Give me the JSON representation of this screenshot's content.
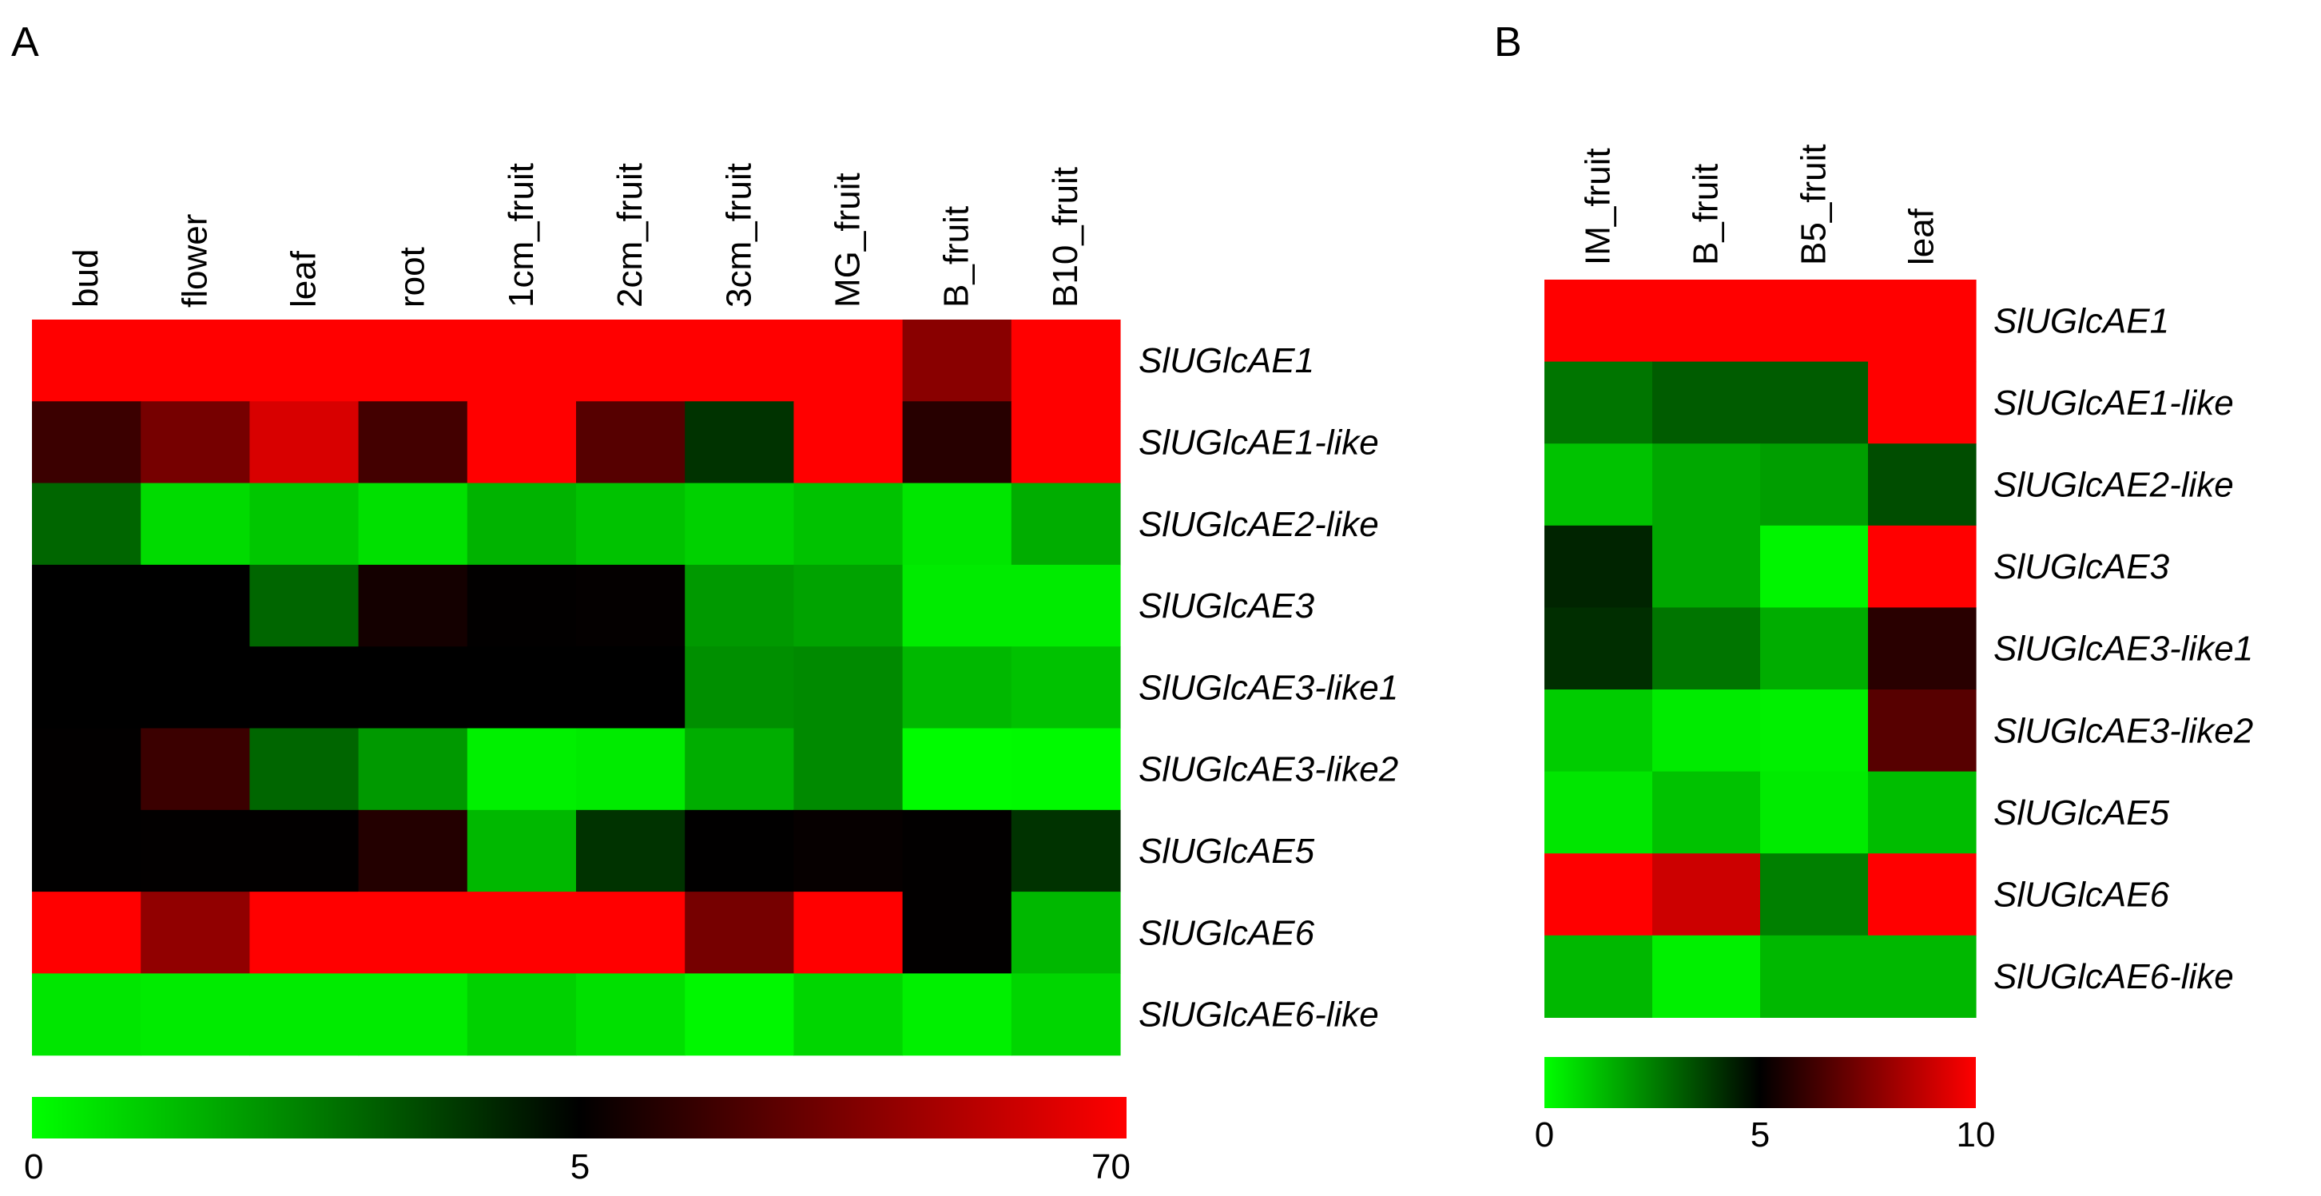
{
  "chart_data": [
    {
      "type": "heatmap",
      "panel_label": "A",
      "columns": [
        "bud",
        "flower",
        "leaf",
        "root",
        "1cm_fruit",
        "2cm_fruit",
        "3cm_fruit",
        "MG_fruit",
        "B_fruit",
        "B10_fruit"
      ],
      "rows": [
        "SlUGlcAE1",
        "SlUGlcAE1-like",
        "SlUGlcAE2-like",
        "SlUGlcAE3",
        "SlUGlcAE3-like1",
        "SlUGlcAE3-like2",
        "SlUGlcAE5",
        "SlUGlcAE6",
        "SlUGlcAE6-like"
      ],
      "values": [
        [
          70,
          70,
          70,
          70,
          70,
          70,
          70,
          70,
          40,
          70
        ],
        [
          20,
          35,
          60,
          22,
          70,
          27,
          4,
          70,
          15,
          70
        ],
        [
          3,
          0.7,
          1.1,
          0.6,
          1.5,
          1.2,
          0.9,
          1.2,
          0.5,
          1.6
        ],
        [
          5,
          5,
          3,
          10,
          5.5,
          6,
          2,
          1.8,
          0.4,
          0.4
        ],
        [
          5,
          5,
          5,
          5,
          5,
          5,
          2.2,
          2.3,
          1.4,
          1.2
        ],
        [
          5.5,
          20,
          3,
          2,
          0.3,
          0.4,
          1.6,
          2.3,
          0.05,
          0.1
        ],
        [
          5.2,
          5.5,
          5.5,
          14,
          1.4,
          4,
          5.3,
          6.5,
          5.5,
          4
        ],
        [
          70,
          42,
          70,
          70,
          70,
          70,
          35,
          70,
          5.5,
          1.4
        ],
        [
          0.5,
          0.4,
          0.4,
          0.4,
          0.9,
          0.6,
          0.15,
          0.8,
          0.3,
          0.8
        ]
      ],
      "colorbar": {
        "min": 0,
        "mid": 5,
        "max": 70,
        "tick_labels": [
          "0",
          "5",
          "70"
        ],
        "colors": {
          "low": "#00ff00",
          "mid": "#000000",
          "high": "#ff0000"
        }
      }
    },
    {
      "type": "heatmap",
      "panel_label": "B",
      "columns": [
        "IM_fruit",
        "B_fruit",
        "B5_fruit",
        "leaf"
      ],
      "rows": [
        "SlUGlcAE1",
        "SlUGlcAE1-like",
        "SlUGlcAE2-like",
        "SlUGlcAE3",
        "SlUGlcAE3-like1",
        "SlUGlcAE3-like2",
        "SlUGlcAE5",
        "SlUGlcAE6",
        "SlUGlcAE6-like"
      ],
      "values": [
        [
          10,
          10,
          10,
          10
        ],
        [
          2.7,
          3.2,
          3.2,
          10
        ],
        [
          1.2,
          1.7,
          1.9,
          3.5
        ],
        [
          4.3,
          1.7,
          0.2,
          10
        ],
        [
          4.1,
          2.7,
          1.6,
          5.8
        ],
        [
          1.0,
          0.4,
          0.3,
          6.7
        ],
        [
          0.5,
          1.2,
          0.4,
          1.3
        ],
        [
          10,
          9,
          2.5,
          10
        ],
        [
          1.4,
          0.3,
          1.4,
          1.4
        ]
      ],
      "colorbar": {
        "min": 0,
        "mid": 5,
        "max": 10,
        "tick_labels": [
          "0",
          "5",
          "10"
        ],
        "colors": {
          "low": "#00ff00",
          "mid": "#000000",
          "high": "#ff0000"
        }
      }
    }
  ]
}
